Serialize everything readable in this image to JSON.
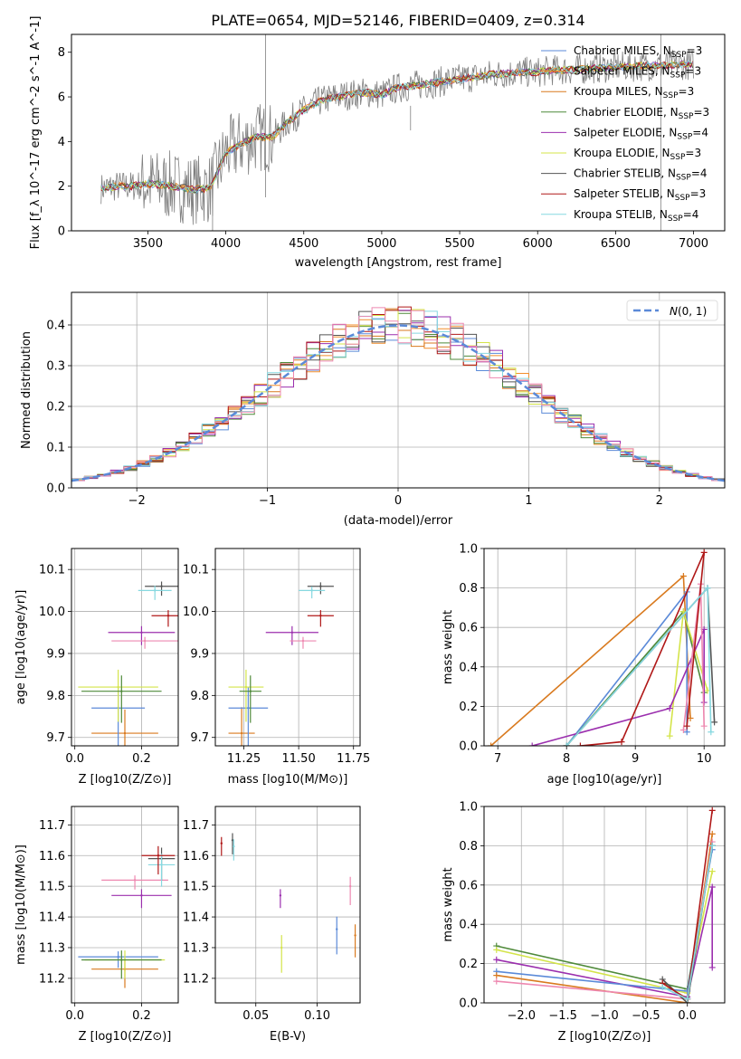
{
  "colors": {
    "Chabrier MILES": "#5b8ad8",
    "Salpeter MILES": "#f28e2b",
    "Kroupa MILES": "#d97a1f",
    "Chabrier ELODIE": "#4f8a3a",
    "Salpeter ELODIE": "#9b2fae",
    "Kroupa ELODIE": "#d4e44a",
    "Chabrier STELIB": "#555555",
    "Salpeter STELIB": "#b01818",
    "Kroupa STELIB": "#86d8e0",
    "pink": "#ee88b0",
    "normal": "#5b8ad8"
  },
  "title": "PLATE=0654, MJD=52146, FIBERID=0409, z=0.314",
  "models": [
    {
      "name": "Chabrier MILES",
      "nssp": "3"
    },
    {
      "name": "Salpeter MILES",
      "nssp": "3"
    },
    {
      "name": "Kroupa MILES",
      "nssp": "3"
    },
    {
      "name": "Chabrier ELODIE",
      "nssp": "3"
    },
    {
      "name": "Salpeter ELODIE",
      "nssp": "4"
    },
    {
      "name": "Kroupa ELODIE",
      "nssp": "3"
    },
    {
      "name": "Chabrier STELIB",
      "nssp": "4"
    },
    {
      "name": "Salpeter STELIB",
      "nssp": "3"
    },
    {
      "name": "Kroupa STELIB",
      "nssp": "4"
    }
  ],
  "chart_data": [
    {
      "id": "spectrum",
      "type": "line",
      "xlabel": "wavelength [Angstrom, rest frame]",
      "ylabel": "Flux [f_λ 10^-17 erg cm^-2 s^-1 A^-1]",
      "xlim": [
        3010,
        7200
      ],
      "ylim": [
        0,
        8.8
      ],
      "xticks": [
        3500,
        4000,
        4500,
        5000,
        5500,
        6000,
        6500,
        7000
      ],
      "yticks": [
        0,
        2,
        4,
        6,
        8
      ],
      "continuum": {
        "x": [
          3200,
          3300,
          3400,
          3500,
          3600,
          3700,
          3800,
          3900,
          4000,
          4100,
          4200,
          4300,
          4400,
          4500,
          4600,
          4700,
          4800,
          4900,
          5000,
          5100,
          5200,
          5300,
          5400,
          5500,
          5600,
          5700,
          5800,
          5900,
          6000,
          6100,
          6200,
          6300,
          6400,
          6500,
          6600,
          6700,
          6800,
          6900,
          7000
        ],
        "y": [
          1.9,
          2.0,
          2.0,
          2.1,
          2.05,
          1.95,
          1.85,
          1.9,
          3.5,
          3.9,
          4.2,
          4.2,
          4.9,
          5.4,
          5.8,
          6.0,
          6.1,
          6.2,
          6.1,
          6.4,
          6.5,
          6.6,
          6.7,
          6.8,
          6.9,
          7.0,
          7.05,
          7.1,
          7.1,
          7.2,
          7.2,
          7.25,
          7.3,
          7.35,
          7.35,
          7.4,
          7.4,
          7.45,
          7.45
        ]
      },
      "legend": "top-right"
    },
    {
      "id": "residuals",
      "type": "line",
      "xlabel": "(data-model)/error",
      "ylabel": "Normed distribution",
      "xlim": [
        -2.5,
        2.5
      ],
      "ylim": [
        0,
        0.48
      ],
      "xticks": [
        -2,
        -1,
        0,
        1,
        2
      ],
      "yticks": [
        0.0,
        0.1,
        0.2,
        0.3,
        0.4
      ],
      "legend_label": "N(0,1)",
      "legend": "top-right"
    },
    {
      "id": "z-age",
      "type": "scatter",
      "xlabel": "Z [log10(Z/Z⊙)]",
      "ylabel": "age  [log10(age/yr)]",
      "xlim": [
        -0.01,
        0.31
      ],
      "ylim": [
        9.68,
        10.15
      ],
      "xticks": [
        0.0,
        0.2
      ],
      "yticks": [
        9.7,
        9.8,
        9.9,
        10.0,
        10.1
      ],
      "points": [
        {
          "c": "Kroupa MILES",
          "x": 0.15,
          "y": 9.71,
          "xe": 0.1,
          "ye": 0.3
        },
        {
          "c": "Chabrier MILES",
          "x": 0.13,
          "y": 9.77,
          "xe": 0.08,
          "ye": 0.27
        },
        {
          "c": "Kroupa ELODIE",
          "x": 0.13,
          "y": 9.82,
          "xe": 0.12,
          "ye": 0.22
        },
        {
          "c": "Chabrier ELODIE",
          "x": 0.14,
          "y": 9.81,
          "xe": 0.12,
          "ye": 0.2
        },
        {
          "c": "Salpeter ELODIE",
          "x": 0.2,
          "y": 9.95,
          "xe": 0.1,
          "ye": 0.08
        },
        {
          "c": "pink",
          "x": 0.21,
          "y": 9.93,
          "xe": 0.1,
          "ye": 0.05
        },
        {
          "c": "Chabrier STELIB",
          "x": 0.26,
          "y": 10.06,
          "xe": 0.05,
          "ye": 0.06
        },
        {
          "c": "Kroupa STELIB",
          "x": 0.24,
          "y": 10.05,
          "xe": 0.05,
          "ye": 0.06
        },
        {
          "c": "Salpeter STELIB",
          "x": 0.28,
          "y": 9.99,
          "xe": 0.05,
          "ye": 0.07
        }
      ]
    },
    {
      "id": "mass-age",
      "type": "scatter",
      "xlabel": "mass [log10(M/M⊙)]",
      "ylabel": "",
      "xlim": [
        11.12,
        11.78
      ],
      "ylim": [
        9.68,
        10.15
      ],
      "xticks": [
        11.25,
        11.5,
        11.75
      ],
      "yticks": [
        9.7,
        9.8,
        9.9,
        10.0,
        10.1
      ],
      "points": [
        {
          "c": "Kroupa MILES",
          "x": 11.24,
          "y": 9.71,
          "xe": 0.06,
          "ye": 0.33
        },
        {
          "c": "Chabrier MILES",
          "x": 11.27,
          "y": 9.77,
          "xe": 0.09,
          "ye": 0.27
        },
        {
          "c": "Kroupa ELODIE",
          "x": 11.26,
          "y": 9.82,
          "xe": 0.08,
          "ye": 0.22
        },
        {
          "c": "Chabrier ELODIE",
          "x": 11.28,
          "y": 9.81,
          "xe": 0.05,
          "ye": 0.2
        },
        {
          "c": "Salpeter ELODIE",
          "x": 11.47,
          "y": 9.95,
          "xe": 0.12,
          "ye": 0.08
        },
        {
          "c": "pink",
          "x": 11.52,
          "y": 9.93,
          "xe": 0.06,
          "ye": 0.05
        },
        {
          "c": "Chabrier STELIB",
          "x": 11.6,
          "y": 10.06,
          "xe": 0.06,
          "ye": 0.05
        },
        {
          "c": "Kroupa STELIB",
          "x": 11.56,
          "y": 10.05,
          "xe": 0.06,
          "ye": 0.05
        },
        {
          "c": "Salpeter STELIB",
          "x": 11.6,
          "y": 9.99,
          "xe": 0.06,
          "ye": 0.07
        }
      ]
    },
    {
      "id": "weight-age",
      "type": "line",
      "xlabel": "age  [log10(age/yr)]",
      "ylabel": "mass weight",
      "xlim": [
        6.8,
        10.3
      ],
      "ylim": [
        0,
        1.0
      ],
      "xticks": [
        7,
        8,
        9,
        10
      ],
      "yticks": [
        0.0,
        0.2,
        0.4,
        0.6,
        0.8,
        1.0
      ],
      "series": [
        {
          "c": "Kroupa MILES",
          "x": [
            6.9,
            9.7,
            9.8
          ],
          "y": [
            0.0,
            0.86,
            0.14
          ]
        },
        {
          "c": "Chabrier MILES",
          "x": [
            8.0,
            9.75,
            9.75
          ],
          "y": [
            0.0,
            0.78,
            0.07
          ]
        },
        {
          "c": "Chabrier ELODIE",
          "x": [
            8.0,
            9.7,
            10.0
          ],
          "y": [
            0.0,
            0.68,
            0.27
          ]
        },
        {
          "c": "Kroupa ELODIE",
          "x": [
            9.5,
            9.7,
            10.05
          ],
          "y": [
            0.05,
            0.68,
            0.28
          ]
        },
        {
          "c": "Salpeter ELODIE",
          "x": [
            7.5,
            9.5,
            10.0,
            10.0
          ],
          "y": [
            0.0,
            0.19,
            0.59,
            0.22
          ]
        },
        {
          "c": "pink",
          "x": [
            9.7,
            9.95,
            10.0
          ],
          "y": [
            0.08,
            0.82,
            0.1
          ]
        },
        {
          "c": "Chabrier STELIB",
          "x": [
            8.0,
            10.05,
            10.15
          ],
          "y": [
            0.0,
            0.8,
            0.12
          ]
        },
        {
          "c": "Salpeter STELIB",
          "x": [
            8.2,
            8.8,
            10.0,
            9.75
          ],
          "y": [
            0.0,
            0.02,
            0.98,
            0.1
          ]
        },
        {
          "c": "Kroupa STELIB",
          "x": [
            8.0,
            10.05,
            10.1
          ],
          "y": [
            0.0,
            0.8,
            0.07
          ]
        }
      ]
    },
    {
      "id": "z-mass",
      "type": "scatter",
      "xlabel": "Z [log10(Z/Z⊙)]",
      "ylabel": "mass [log10(M/M⊙)]",
      "xlim": [
        -0.01,
        0.31
      ],
      "ylim": [
        11.12,
        11.76
      ],
      "xticks": [
        0.0,
        0.2
      ],
      "yticks": [
        11.2,
        11.3,
        11.4,
        11.5,
        11.6,
        11.7
      ],
      "points": [
        {
          "c": "Kroupa MILES",
          "x": 0.15,
          "y": 11.23,
          "xe": 0.1,
          "ye": 0.12
        },
        {
          "c": "Chabrier MILES",
          "x": 0.13,
          "y": 11.27,
          "xe": 0.12,
          "ye": 0.07
        },
        {
          "c": "Kroupa ELODIE",
          "x": 0.15,
          "y": 11.26,
          "xe": 0.12,
          "ye": 0.12
        },
        {
          "c": "Chabrier ELODIE",
          "x": 0.14,
          "y": 11.26,
          "xe": 0.12,
          "ye": 0.12
        },
        {
          "c": "Salpeter ELODIE",
          "x": 0.2,
          "y": 11.47,
          "xe": 0.09,
          "ye": 0.08
        },
        {
          "c": "pink",
          "x": 0.18,
          "y": 11.52,
          "xe": 0.1,
          "ye": 0.06
        },
        {
          "c": "Chabrier STELIB",
          "x": 0.26,
          "y": 11.59,
          "xe": 0.04,
          "ye": 0.14
        },
        {
          "c": "Kroupa STELIB",
          "x": 0.26,
          "y": 11.57,
          "xe": 0.04,
          "ye": 0.14
        },
        {
          "c": "Salpeter STELIB",
          "x": 0.25,
          "y": 11.6,
          "xe": 0.05,
          "ye": 0.12
        }
      ]
    },
    {
      "id": "ebv-mass",
      "type": "scatter",
      "xlabel": "E(B-V)",
      "ylabel": "",
      "xlim": [
        0.017,
        0.135
      ],
      "ylim": [
        11.12,
        11.76
      ],
      "xticks": [
        0.05,
        0.1
      ],
      "yticks": [
        11.2,
        11.3,
        11.4,
        11.5,
        11.6,
        11.7
      ],
      "points": [
        {
          "c": "Salpeter STELIB",
          "x": 0.022,
          "y": 11.64,
          "ye": 0.08
        },
        {
          "c": "Chabrier STELIB",
          "x": 0.031,
          "y": 11.65,
          "ye": 0.09
        },
        {
          "c": "Kroupa STELIB",
          "x": 0.032,
          "y": 11.63,
          "ye": 0.09
        },
        {
          "c": "Salpeter ELODIE",
          "x": 0.07,
          "y": 11.47,
          "ye": 0.08
        },
        {
          "c": "Kroupa ELODIE",
          "x": 0.071,
          "y": 11.3,
          "ye": 0.16
        },
        {
          "c": "Chabrier MILES",
          "x": 0.116,
          "y": 11.36,
          "ye": 0.16
        },
        {
          "c": "pink",
          "x": 0.127,
          "y": 11.5,
          "ye": 0.12
        },
        {
          "c": "Kroupa MILES",
          "x": 0.131,
          "y": 11.34,
          "ye": 0.14
        }
      ]
    },
    {
      "id": "weight-z",
      "type": "line",
      "xlabel": "Z [log10(Z/Z⊙)]",
      "ylabel": "mass weight",
      "xlim": [
        -2.45,
        0.45
      ],
      "ylim": [
        0,
        1.0
      ],
      "xticks": [
        -2.0,
        -1.5,
        -1.0,
        -0.5,
        0.0
      ],
      "yticks": [
        0.0,
        0.2,
        0.4,
        0.6,
        0.8,
        1.0
      ],
      "series": [
        {
          "c": "Chabrier ELODIE",
          "x": [
            -2.3,
            0.0,
            0.3
          ],
          "y": [
            0.29,
            0.07,
            0.8
          ]
        },
        {
          "c": "Kroupa ELODIE",
          "x": [
            -2.3,
            0.0,
            0.3
          ],
          "y": [
            0.27,
            0.05,
            0.67
          ]
        },
        {
          "c": "Salpeter ELODIE",
          "x": [
            -2.3,
            0.0,
            0.3,
            0.3
          ],
          "y": [
            0.22,
            0.03,
            0.59,
            0.18
          ]
        },
        {
          "c": "Chabrier MILES",
          "x": [
            -2.3,
            0.0,
            0.3
          ],
          "y": [
            0.16,
            0.06,
            0.78
          ]
        },
        {
          "c": "Kroupa MILES",
          "x": [
            -2.3,
            0.0,
            0.3
          ],
          "y": [
            0.14,
            0.0,
            0.86
          ]
        },
        {
          "c": "pink",
          "x": [
            -2.3,
            0.0,
            0.3
          ],
          "y": [
            0.11,
            0.02,
            0.82
          ]
        },
        {
          "c": "Chabrier STELIB",
          "x": [
            -0.3,
            0.0,
            0.3
          ],
          "y": [
            0.12,
            0.0,
            0.8
          ]
        },
        {
          "c": "Salpeter STELIB",
          "x": [
            -0.3,
            0.0,
            0.3
          ],
          "y": [
            0.1,
            0.02,
            0.98
          ]
        },
        {
          "c": "Kroupa STELIB",
          "x": [
            -0.3,
            0.0,
            0.3
          ],
          "y": [
            0.08,
            0.02,
            0.8
          ]
        }
      ]
    }
  ]
}
